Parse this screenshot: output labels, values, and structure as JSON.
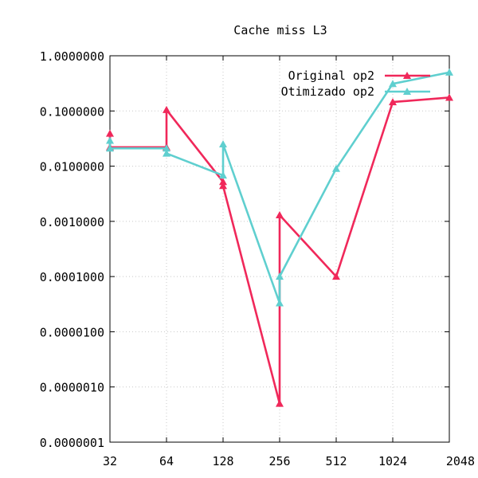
{
  "chart_data": {
    "type": "line",
    "title": "Cache miss L3",
    "xlabel": "",
    "ylabel": "",
    "x_scale": "log2",
    "y_scale": "log10",
    "x_ticks": [
      32,
      64,
      128,
      256,
      512,
      1024,
      2048
    ],
    "x_tick_labels": [
      "32",
      "64",
      "128",
      "256",
      "512",
      "1024",
      "2048"
    ],
    "ylim": [
      1e-07,
      1
    ],
    "y_ticks": [
      1e-07,
      1e-06,
      1e-05,
      0.0001,
      0.001,
      0.01,
      0.1,
      1
    ],
    "y_tick_labels": [
      "0.0000001",
      "0.0000010",
      "0.0000100",
      "0.0001000",
      "0.0010000",
      "0.0100000",
      "0.1000000",
      "1.0000000"
    ],
    "grid": true,
    "legend_position": "top-right",
    "series": [
      {
        "name": "Original op2",
        "color": "#f0285a",
        "marker": "triangle",
        "points": [
          [
            32,
            0.039
          ],
          [
            32,
            0.022
          ],
          [
            64,
            0.022
          ],
          [
            64,
            0.105
          ],
          [
            128,
            0.0052
          ],
          [
            128,
            0.0044
          ],
          [
            256,
            5e-07
          ],
          [
            256,
            0.0013
          ],
          [
            512,
            0.0001
          ],
          [
            1024,
            0.145
          ],
          [
            2048,
            0.175
          ]
        ]
      },
      {
        "name": "Otimizado op2",
        "color": "#5fcfcf",
        "marker": "triangle",
        "points": [
          [
            32,
            0.029
          ],
          [
            32,
            0.021
          ],
          [
            64,
            0.021
          ],
          [
            64,
            0.017
          ],
          [
            128,
            0.0068
          ],
          [
            128,
            0.025
          ],
          [
            256,
            3.3e-05
          ],
          [
            256,
            0.0001
          ],
          [
            512,
            0.009
          ],
          [
            1024,
            0.31
          ],
          [
            2048,
            0.5
          ]
        ]
      }
    ]
  }
}
